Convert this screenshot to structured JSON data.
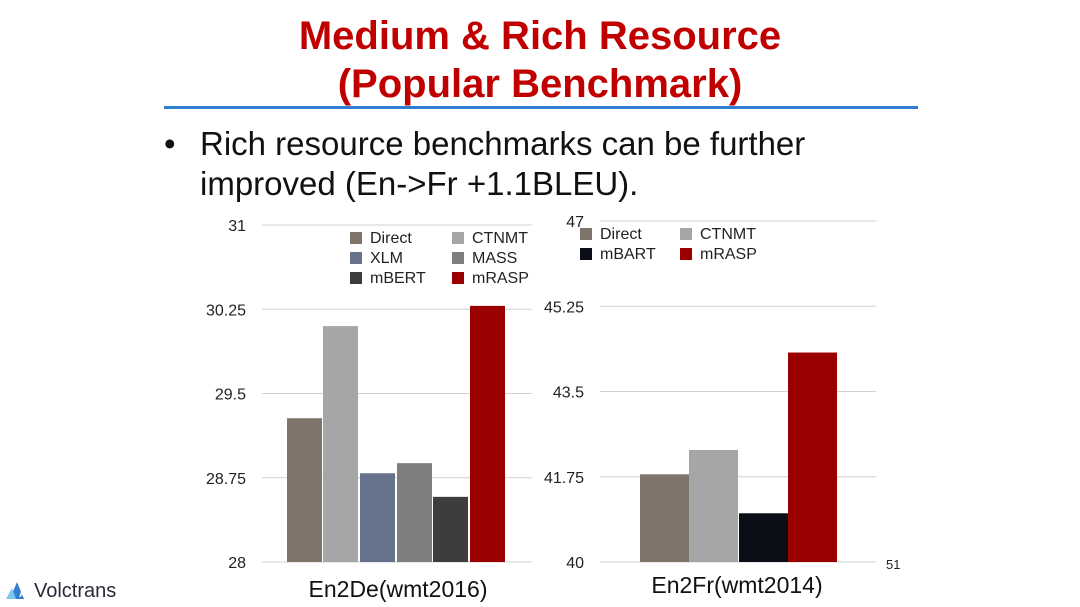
{
  "slide": {
    "title_line1": "Medium & Rich Resource",
    "title_line2": "(Popular Benchmark)",
    "bullet_symbol": "•",
    "bullet_text": "Rich resource benchmarks can be further improved (En->Fr +1.1BLEU).",
    "page_number": "51",
    "logo_text": "Volctrans",
    "title_color": "#c00000",
    "rule_color": "#2f7fd1"
  },
  "chart_data": [
    {
      "type": "bar",
      "xlabel": "En2De(wmt2016)",
      "ylim": [
        28,
        31
      ],
      "yticks": [
        "28",
        "28.75",
        "29.5",
        "30.25",
        "31"
      ],
      "grid": true,
      "legend_position": "top-right",
      "legend_columns": [
        [
          "Direct",
          "XLM",
          "mBERT"
        ],
        [
          "CTNMT",
          "MASS",
          "mRASP"
        ]
      ],
      "series": [
        {
          "name": "Direct",
          "value": 29.28,
          "color": "#7f7469"
        },
        {
          "name": "CTNMT",
          "value": 30.1,
          "color": "#a6a6a6"
        },
        {
          "name": "XLM",
          "value": 28.79,
          "color": "#67728d"
        },
        {
          "name": "MASS",
          "value": 28.88,
          "color": "#7e7e7e"
        },
        {
          "name": "mBERT",
          "value": 28.58,
          "color": "#3d3d3d"
        },
        {
          "name": "mRASP",
          "value": 30.28,
          "color": "#9b0000"
        }
      ]
    },
    {
      "type": "bar",
      "xlabel": "En2Fr(wmt2014)",
      "ylim": [
        40,
        47
      ],
      "yticks": [
        "40",
        "41.75",
        "43.5",
        "45.25",
        "47"
      ],
      "grid": true,
      "legend_position": "top-left",
      "legend_columns": [
        [
          "Direct",
          "mBART"
        ],
        [
          "CTNMT",
          "mRASP"
        ]
      ],
      "series": [
        {
          "name": "Direct",
          "value": 41.8,
          "color": "#7f7469"
        },
        {
          "name": "CTNMT",
          "value": 42.3,
          "color": "#a6a6a6"
        },
        {
          "name": "mBART",
          "value": 41.0,
          "color": "#0b0d17"
        },
        {
          "name": "mRASP",
          "value": 44.3,
          "color": "#9b0000"
        }
      ]
    }
  ]
}
